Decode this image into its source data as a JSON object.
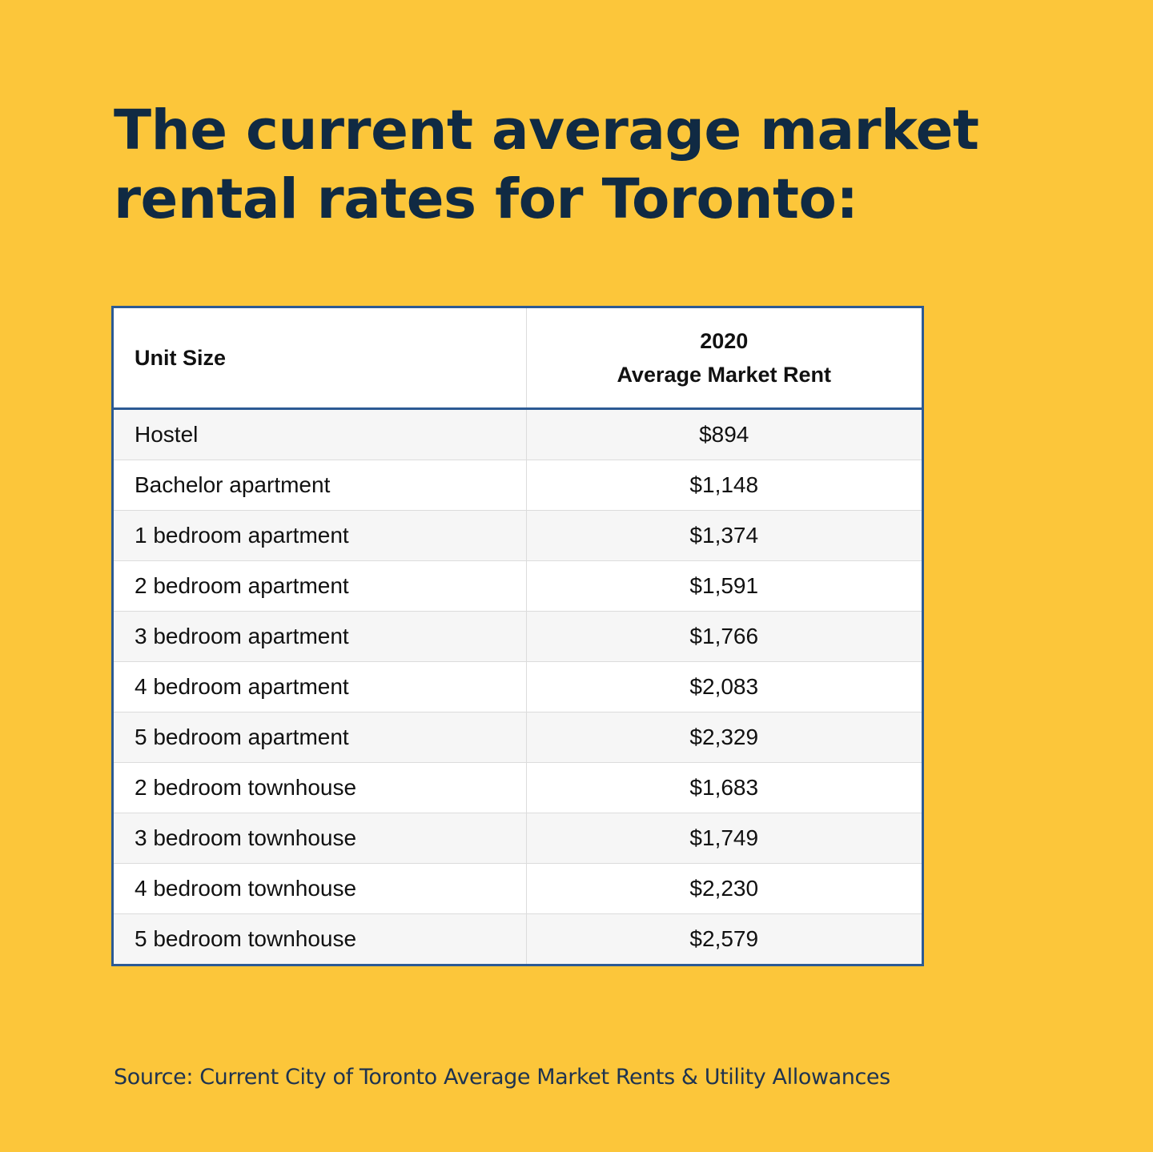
{
  "title": {
    "line1": "The current average market",
    "line2": "rental rates for Toronto:"
  },
  "table": {
    "headers": {
      "unit": "Unit Size",
      "rent_year": "2020",
      "rent_label": "Average Market Rent"
    },
    "rows": [
      {
        "unit": "Hostel",
        "rent": "$894"
      },
      {
        "unit": "Bachelor apartment",
        "rent": "$1,148"
      },
      {
        "unit": "1 bedroom apartment",
        "rent": "$1,374"
      },
      {
        "unit": "2 bedroom apartment",
        "rent": "$1,591"
      },
      {
        "unit": "3 bedroom apartment",
        "rent": "$1,766"
      },
      {
        "unit": "4 bedroom apartment",
        "rent": "$2,083"
      },
      {
        "unit": "5 bedroom apartment",
        "rent": "$2,329"
      },
      {
        "unit": "2 bedroom townhouse",
        "rent": "$1,683"
      },
      {
        "unit": "3 bedroom townhouse",
        "rent": "$1,749"
      },
      {
        "unit": "4 bedroom townhouse",
        "rent": "$2,230"
      },
      {
        "unit": "5 bedroom townhouse",
        "rent": "$2,579"
      }
    ]
  },
  "source": "Source: Current City of Toronto Average Market Rents & Utility Allowances",
  "colors": {
    "background": "#FCC63A",
    "title": "#102A43",
    "table_border": "#2C5A94",
    "row_alt": "#F6F6F6"
  }
}
